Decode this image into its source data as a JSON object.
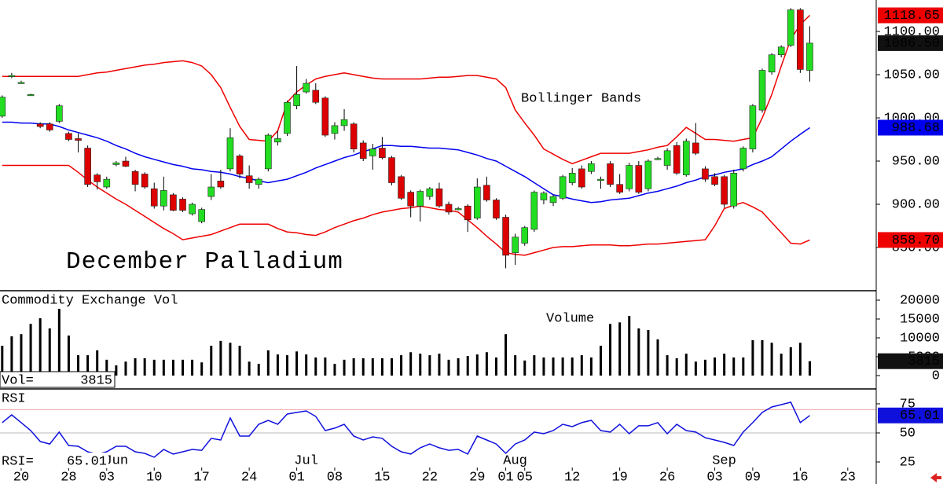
{
  "chart_data": {
    "type": "candlestick",
    "title": "December Palladium",
    "annotation": "Bollinger Bands",
    "categories": [
      null,
      null,
      "20",
      null,
      null,
      null,
      null,
      "28",
      null,
      null,
      null,
      "03",
      null,
      null,
      null,
      null,
      "10",
      null,
      null,
      null,
      null,
      "17",
      null,
      null,
      null,
      null,
      "24",
      null,
      null,
      null,
      null,
      "01",
      null,
      null,
      null,
      "08",
      null,
      null,
      null,
      null,
      "15",
      null,
      null,
      null,
      null,
      "22",
      null,
      null,
      null,
      null,
      "29",
      null,
      null,
      "01",
      null,
      "05",
      null,
      null,
      null,
      null,
      "12",
      null,
      null,
      null,
      null,
      "19",
      null,
      null,
      null,
      null,
      "26",
      null,
      null,
      null,
      null,
      "03",
      null,
      null,
      null,
      "09",
      null,
      null,
      null,
      null,
      "16",
      null,
      null,
      null,
      null,
      "23"
    ],
    "months": [
      null,
      null,
      null,
      null,
      null,
      null,
      null,
      null,
      null,
      null,
      null,
      "Jun",
      null,
      null,
      null,
      null,
      null,
      null,
      null,
      null,
      null,
      null,
      null,
      null,
      null,
      null,
      null,
      null,
      null,
      null,
      null,
      "Jul",
      null,
      null,
      null,
      null,
      null,
      null,
      null,
      null,
      null,
      null,
      null,
      null,
      null,
      null,
      null,
      null,
      null,
      null,
      null,
      null,
      null,
      "Aug",
      null,
      null,
      null,
      null,
      null,
      null,
      null,
      null,
      null,
      null,
      null,
      null,
      null,
      null,
      null,
      null,
      null,
      null,
      null,
      null,
      null,
      "Sep",
      null,
      null,
      null,
      null,
      null,
      null,
      null,
      null,
      null,
      null,
      null,
      null,
      null,
      null
    ],
    "open": [
      1002,
      1048,
      1041,
      1027,
      993,
      993,
      996,
      982,
      976,
      965,
      934,
      920,
      946,
      950,
      938,
      935,
      918,
      898,
      911,
      906,
      889,
      880,
      909,
      927,
      941,
      956,
      933,
      923,
      941,
      972,
      982,
      1014,
      1030,
      1032,
      1023,
      982,
      991,
      993,
      971,
      956,
      965,
      954,
      932,
      914,
      898,
      909,
      918,
      900,
      895,
      898,
      884,
      922,
      905,
      885,
      844,
      855,
      871,
      905,
      902,
      907,
      925,
      941,
      938,
      928,
      947,
      923,
      918,
      945,
      918,
      953,
      945,
      968,
      934,
      971,
      941,
      932,
      932,
      898,
      941,
      964,
      1009,
      1053,
      1073,
      1084,
      1125,
      1055,
      null,
      null,
      null,
      null
    ],
    "high": [
      1026,
      1052,
      1043,
      1028,
      995,
      995,
      1016,
      984,
      982,
      968,
      936,
      932,
      950,
      955,
      940,
      937,
      925,
      932,
      913,
      908,
      902,
      896,
      935,
      940,
      988,
      958,
      945,
      931,
      982,
      985,
      1020,
      1060,
      1045,
      1040,
      1025,
      995,
      1010,
      995,
      974,
      970,
      978,
      956,
      934,
      916,
      917,
      920,
      925,
      903,
      897,
      900,
      930,
      932,
      907,
      888,
      866,
      875,
      916,
      915,
      911,
      934,
      942,
      945,
      950,
      932,
      950,
      935,
      948,
      950,
      952,
      955,
      965,
      972,
      976,
      994,
      944,
      936,
      934,
      940,
      967,
      1016,
      1057,
      1075,
      1084,
      1127,
      1127,
      1106,
      null,
      null,
      null,
      null
    ],
    "low": [
      1000,
      1046,
      1040,
      1026,
      988,
      984,
      994,
      973,
      960,
      920,
      917,
      918,
      944,
      943,
      915,
      918,
      895,
      893,
      892,
      891,
      887,
      878,
      905,
      918,
      938,
      930,
      918,
      918,
      938,
      968,
      979,
      1010,
      1028,
      1016,
      978,
      975,
      985,
      960,
      950,
      940,
      952,
      922,
      905,
      885,
      880,
      905,
      896,
      888,
      893,
      868,
      882,
      903,
      882,
      826,
      830,
      852,
      868,
      900,
      898,
      905,
      922,
      918,
      935,
      918,
      920,
      912,
      915,
      912,
      915,
      951,
      940,
      934,
      932,
      957,
      926,
      921,
      896,
      895,
      938,
      960,
      1006,
      1050,
      1070,
      1082,
      1052,
      1042,
      null,
      null,
      null,
      null
    ],
    "close": [
      1024,
      1049,
      1041,
      1027,
      990,
      986,
      1014,
      975,
      974,
      923,
      926,
      929,
      948,
      944,
      923,
      920,
      898,
      916,
      893,
      893,
      900,
      894,
      920,
      920,
      977,
      935,
      925,
      929,
      980,
      976,
      1018,
      1027,
      1040,
      1018,
      980,
      991,
      998,
      964,
      953,
      964,
      954,
      925,
      907,
      898,
      915,
      918,
      898,
      891,
      895,
      882,
      920,
      905,
      884,
      841,
      862,
      873,
      914,
      913,
      909,
      932,
      936,
      920,
      947,
      929,
      923,
      914,
      945,
      914,
      950,
      953,
      962,
      936,
      973,
      959,
      929,
      923,
      900,
      936,
      965,
      1014,
      1055,
      1073,
      1082,
      1125,
      1056,
      1086.5,
      null,
      null,
      null,
      null
    ],
    "close_label": "1086.50",
    "up_color": "#22dd22",
    "down_color": "#dd0000",
    "bands": [
      {
        "color": "#ee0000",
        "last_label": "1118.65",
        "values": [
          1048,
          1048,
          1048,
          1048,
          1048,
          1048,
          1048,
          1048,
          1048,
          1050,
          1052,
          1053,
          1055,
          1057,
          1059,
          1061,
          1062,
          1064,
          1065,
          1066,
          1064,
          1060,
          1050,
          1035,
          1012,
          990,
          975,
          974,
          973,
          985,
          1018,
          1030,
          1038,
          1045,
          1048,
          1050,
          1052,
          1050,
          1048,
          1046,
          1045,
          1045,
          1045,
          1045,
          1045,
          1046,
          1047,
          1047,
          1048,
          1049,
          1049,
          1047,
          1045,
          1035,
          1009,
          994,
          980,
          964,
          958,
          952,
          947,
          951,
          955,
          959,
          959,
          959,
          959,
          961,
          963,
          966,
          968,
          978,
          989,
          982,
          975,
          975,
          974,
          973,
          975,
          977,
          1000,
          1027,
          1060,
          1091,
          1108,
          1118.65,
          null,
          null,
          null,
          null
        ]
      },
      {
        "color": "#0000ee",
        "last_label": "988.68",
        "values": [
          995,
          995,
          994,
          994,
          993,
          993,
          990,
          986,
          983,
          980,
          977,
          973,
          968,
          964,
          959,
          955,
          952,
          949,
          946,
          944,
          941,
          940,
          938,
          937,
          935,
          932,
          930,
          927,
          925,
          927,
          929,
          933,
          937,
          942,
          946,
          950,
          954,
          957,
          961,
          964,
          968,
          968,
          967,
          967,
          966,
          965,
          965,
          964,
          963,
          960,
          957,
          953,
          950,
          944,
          938,
          932,
          925,
          918,
          911,
          909,
          906,
          904,
          902,
          903,
          905,
          906,
          907,
          910,
          913,
          915,
          918,
          921,
          925,
          928,
          932,
          934,
          937,
          939,
          941,
          946,
          950,
          955,
          964,
          973,
          981,
          988.68,
          null,
          null,
          null,
          null
        ]
      },
      {
        "color": "#ee0000",
        "last_label": "858.70",
        "values": [
          945,
          945,
          945,
          945,
          945,
          945,
          945,
          945,
          937,
          928,
          920,
          913,
          906,
          900,
          893,
          886,
          879,
          872,
          866,
          859,
          861,
          863,
          865,
          869,
          873,
          877,
          877,
          877,
          877,
          872,
          868,
          867,
          865,
          864,
          868,
          873,
          877,
          881,
          884,
          888,
          891,
          893,
          895,
          896,
          898,
          896,
          894,
          893,
          891,
          882,
          873,
          863,
          854,
          844,
          842,
          841,
          844,
          847,
          850,
          851,
          851,
          852,
          853,
          853,
          853,
          852,
          852,
          853,
          854,
          854,
          855,
          856,
          857,
          858,
          859,
          875,
          895,
          899,
          902,
          897,
          891,
          879,
          867,
          855,
          854,
          858.7,
          null,
          null,
          null,
          null
        ]
      }
    ],
    "ylim": [
      800,
      1136.4
    ],
    "yticks": [
      {
        "value": 1100,
        "label": "1100.00"
      },
      {
        "value": 1050,
        "label": "1050.00"
      },
      {
        "value": 1000,
        "label": "1000.00"
      },
      {
        "value": 950,
        "label": "950.00"
      },
      {
        "value": 900,
        "label": "900.00"
      },
      {
        "value": 850,
        "label": "850.00"
      }
    ],
    "volume": {
      "title": "Commodity Exchange Vol",
      "annotation": "Volume",
      "readout_label": "Vol=",
      "color": "#000000",
      "values": [
        7900,
        10400,
        11000,
        13700,
        15200,
        12500,
        17700,
        10600,
        5400,
        5400,
        6700,
        4200,
        2700,
        3700,
        4600,
        4600,
        4200,
        4200,
        4200,
        4200,
        4200,
        3500,
        7900,
        9200,
        8700,
        7900,
        3700,
        3100,
        6700,
        5600,
        5400,
        6400,
        5600,
        4800,
        4800,
        3100,
        4200,
        4600,
        4600,
        4600,
        4600,
        4600,
        5400,
        6200,
        5800,
        5400,
        5800,
        4200,
        4600,
        5200,
        5600,
        6200,
        4800,
        11000,
        5400,
        4000,
        5400,
        4800,
        4800,
        4800,
        4800,
        5400,
        4800,
        7900,
        13700,
        14100,
        15800,
        12500,
        12100,
        9600,
        5400,
        4600,
        5800,
        3700,
        4200,
        4800,
        5800,
        4800,
        4800,
        9400,
        9400,
        8700,
        5800,
        7500,
        8700,
        3815,
        null,
        null,
        null,
        null
      ],
      "ylim": [
        -3540,
        22500
      ],
      "yticks": [
        20000,
        15000,
        10000,
        5000,
        0
      ]
    },
    "rsi": {
      "title": "RSI",
      "readout_label": "RSI=",
      "color": "#1010dd",
      "values": [
        58.8,
        65.5,
        58.8,
        52.0,
        42.6,
        40.5,
        50.7,
        39.2,
        38.5,
        33.8,
        31.8,
        33.8,
        38.5,
        38.5,
        33.8,
        32.4,
        29.1,
        35.8,
        31.8,
        33.8,
        35.8,
        35.1,
        45.3,
        43.9,
        62.8,
        47.3,
        47.3,
        57.4,
        60.8,
        57.4,
        66.2,
        67.6,
        68.9,
        64.2,
        52.0,
        54.1,
        57.4,
        47.3,
        43.9,
        46.6,
        45.3,
        38.5,
        33.8,
        31.8,
        37.2,
        40.5,
        37.2,
        35.1,
        35.8,
        31.8,
        47.3,
        43.9,
        40.5,
        32.4,
        40.5,
        43.9,
        50.7,
        49.3,
        52.0,
        57.4,
        55.4,
        58.8,
        60.8,
        52.0,
        50.7,
        57.4,
        49.3,
        56.1,
        56.1,
        58.8,
        49.3,
        57.4,
        52.0,
        50.7,
        45.9,
        43.9,
        41.9,
        39.2,
        50.7,
        58.8,
        67.6,
        72.3,
        74.3,
        76.4,
        58.8,
        65.01,
        null,
        null,
        null,
        null
      ],
      "ylim": [
        6.1,
        87.8
      ],
      "yticks": [
        75,
        50,
        25
      ],
      "ref_lines": [
        70,
        50
      ]
    }
  }
}
